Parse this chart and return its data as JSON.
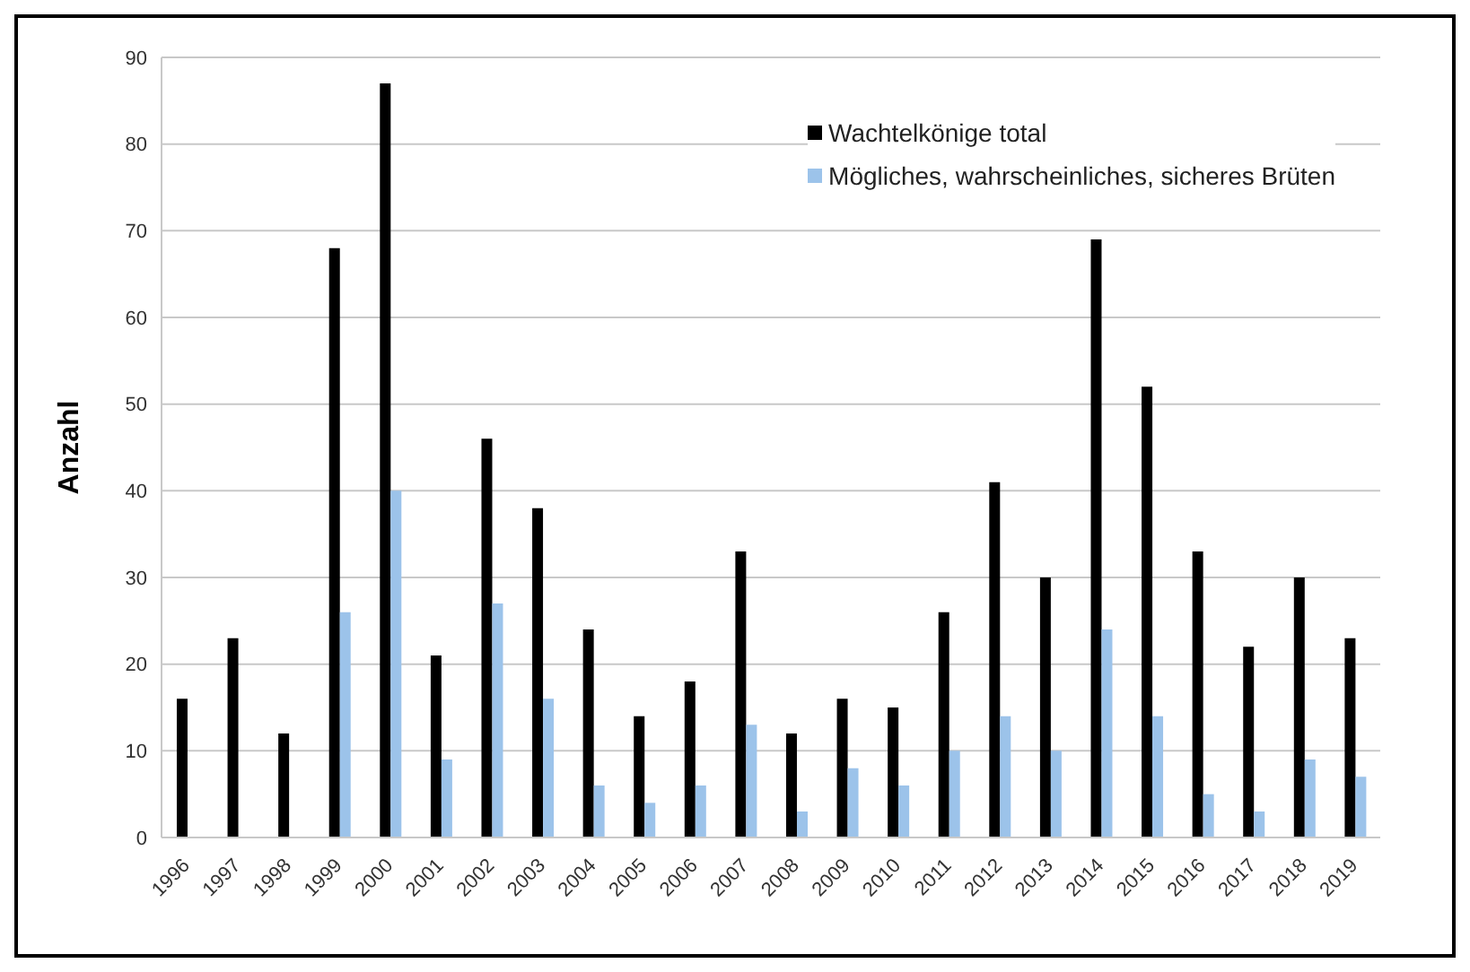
{
  "chart_data": {
    "type": "bar",
    "ylabel": "Anzahl",
    "categories": [
      "1996",
      "1997",
      "1998",
      "1999",
      "2000",
      "2001",
      "2002",
      "2003",
      "2004",
      "2005",
      "2006",
      "2007",
      "2008",
      "2009",
      "2010",
      "2011",
      "2012",
      "2013",
      "2014",
      "2015",
      "2016",
      "2017",
      "2018",
      "2019"
    ],
    "series": [
      {
        "name": "Wachtelkönige total",
        "color": "#000000",
        "values": [
          16,
          23,
          12,
          68,
          87,
          21,
          46,
          38,
          24,
          14,
          18,
          33,
          12,
          16,
          15,
          26,
          41,
          30,
          69,
          52,
          33,
          22,
          30,
          23
        ]
      },
      {
        "name": "Mögliches, wahrscheinliches, sicheres Brüten",
        "color": "#9cc3ea",
        "values": [
          null,
          null,
          null,
          26,
          40,
          9,
          27,
          16,
          6,
          4,
          6,
          13,
          3,
          8,
          6,
          10,
          14,
          10,
          24,
          14,
          5,
          3,
          9,
          7
        ]
      }
    ],
    "ylim": [
      0,
      90
    ],
    "yticks": [
      0,
      10,
      20,
      30,
      40,
      50,
      60,
      70,
      80,
      90
    ],
    "grid": "y",
    "legend": "top right"
  }
}
